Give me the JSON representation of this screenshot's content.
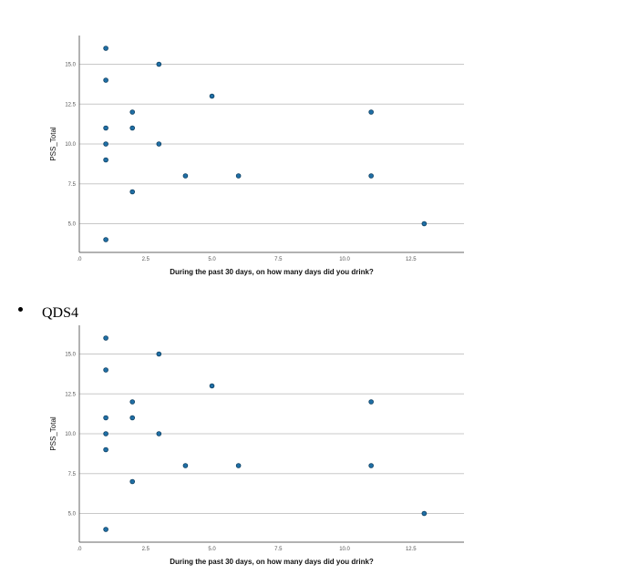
{
  "bullet": {
    "label": "QDS4"
  },
  "chart_data": [
    {
      "type": "scatter",
      "xlabel": "During the past 30 days, on how many days did you drink?",
      "ylabel": "PSS_Total",
      "xlim": [
        0,
        14.5
      ],
      "ylim": [
        3.2,
        16.8
      ],
      "x_ticks": [
        0,
        2.5,
        5,
        7.5,
        10,
        12.5
      ],
      "x_tick_labels": [
        ".0",
        "2.5",
        "5.0",
        "7.5",
        "10.0",
        "12.5"
      ],
      "y_ticks": [
        5,
        7.5,
        10,
        12.5,
        15
      ],
      "y_tick_labels": [
        "5.0",
        "7.5",
        "10.0",
        "12.5",
        "15.0"
      ],
      "grid": "horizontal",
      "color": "#1f6fa6",
      "points": [
        {
          "x": 1,
          "y": 16
        },
        {
          "x": 1,
          "y": 14
        },
        {
          "x": 1,
          "y": 11
        },
        {
          "x": 1,
          "y": 10
        },
        {
          "x": 1,
          "y": 9
        },
        {
          "x": 1,
          "y": 4
        },
        {
          "x": 2,
          "y": 12
        },
        {
          "x": 2,
          "y": 11
        },
        {
          "x": 2,
          "y": 7
        },
        {
          "x": 3,
          "y": 15
        },
        {
          "x": 3,
          "y": 10
        },
        {
          "x": 4,
          "y": 8
        },
        {
          "x": 5,
          "y": 13
        },
        {
          "x": 6,
          "y": 8
        },
        {
          "x": 11,
          "y": 12
        },
        {
          "x": 11,
          "y": 8
        },
        {
          "x": 13,
          "y": 5
        }
      ]
    },
    {
      "type": "scatter",
      "xlabel": "During the past 30 days, on how many days did you drink?",
      "ylabel": "PSS_Total",
      "xlim": [
        0,
        14.5
      ],
      "ylim": [
        3.2,
        16.8
      ],
      "x_ticks": [
        0,
        2.5,
        5,
        7.5,
        10,
        12.5
      ],
      "x_tick_labels": [
        ".0",
        "2.5",
        "5.0",
        "7.5",
        "10.0",
        "12.5"
      ],
      "y_ticks": [
        5,
        7.5,
        10,
        12.5,
        15
      ],
      "y_tick_labels": [
        "5.0",
        "7.5",
        "10.0",
        "12.5",
        "15.0"
      ],
      "grid": "horizontal",
      "color": "#1f6fa6",
      "points": [
        {
          "x": 1,
          "y": 16
        },
        {
          "x": 1,
          "y": 14
        },
        {
          "x": 1,
          "y": 11
        },
        {
          "x": 1,
          "y": 10
        },
        {
          "x": 1,
          "y": 9
        },
        {
          "x": 1,
          "y": 4
        },
        {
          "x": 2,
          "y": 12
        },
        {
          "x": 2,
          "y": 11
        },
        {
          "x": 2,
          "y": 7
        },
        {
          "x": 3,
          "y": 15
        },
        {
          "x": 3,
          "y": 10
        },
        {
          "x": 4,
          "y": 8
        },
        {
          "x": 5,
          "y": 13
        },
        {
          "x": 6,
          "y": 8
        },
        {
          "x": 11,
          "y": 12
        },
        {
          "x": 11,
          "y": 8
        },
        {
          "x": 13,
          "y": 5
        }
      ]
    }
  ]
}
